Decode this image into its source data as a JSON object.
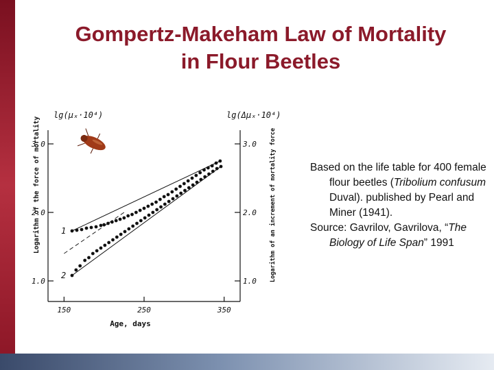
{
  "slide": {
    "title_line1": "Gompertz-Makeham Law of Mortality",
    "title_line2": "in Flour Beetles",
    "caption": {
      "p1_a": "Based on the life table for 400 female flour beetles (",
      "p1_species": "Tribolium confusum",
      "p1_b": " Duval). published by Pearl and Miner (1941).",
      "p2_a": "Source: Gavrilov, Gavrilova, “",
      "p2_book": "The Biology of Life Span",
      "p2_b": "” 1991"
    },
    "colors": {
      "title": "#8b1a2a",
      "accent_bar": "#9e2030",
      "bottom_bar": "#5a6e90"
    }
  },
  "chart_data": {
    "type": "scatter",
    "left_axis_label": "lg(μₓ·10⁴)",
    "right_axis_label": "lg(Δμₓ·10⁴)",
    "left_axis_title": "Logarithm of the force of mortality",
    "right_axis_title": "Logarithm of an increment of mortality force",
    "xlabel": "Age, days",
    "x_ticks": [
      "150",
      "250",
      "350"
    ],
    "y_ticks_left": [
      "1.0",
      "2.0",
      "3.0"
    ],
    "y_ticks_right": [
      "1.0",
      "2.0",
      "3.0"
    ],
    "xlim": [
      130,
      370
    ],
    "ylim": [
      0.7,
      3.2
    ],
    "series": [
      {
        "name": "1",
        "points": [
          [
            160,
            1.73
          ],
          [
            166,
            1.74
          ],
          [
            172,
            1.75
          ],
          [
            178,
            1.77
          ],
          [
            184,
            1.78
          ],
          [
            190,
            1.79
          ],
          [
            196,
            1.81
          ],
          [
            200,
            1.82
          ],
          [
            205,
            1.84
          ],
          [
            210,
            1.86
          ],
          [
            215,
            1.88
          ],
          [
            220,
            1.9
          ],
          [
            225,
            1.92
          ],
          [
            230,
            1.95
          ],
          [
            235,
            1.97
          ],
          [
            240,
            2.0
          ],
          [
            245,
            2.03
          ],
          [
            250,
            2.06
          ],
          [
            255,
            2.09
          ],
          [
            260,
            2.12
          ],
          [
            265,
            2.15
          ],
          [
            270,
            2.19
          ],
          [
            275,
            2.23
          ],
          [
            280,
            2.26
          ],
          [
            285,
            2.3
          ],
          [
            290,
            2.34
          ],
          [
            295,
            2.38
          ],
          [
            300,
            2.42
          ],
          [
            305,
            2.46
          ],
          [
            310,
            2.5
          ],
          [
            315,
            2.54
          ],
          [
            320,
            2.58
          ],
          [
            325,
            2.62
          ],
          [
            330,
            2.65
          ],
          [
            335,
            2.68
          ],
          [
            340,
            2.72
          ],
          [
            345,
            2.75
          ]
        ]
      },
      {
        "name": "2",
        "points": [
          [
            160,
            1.08
          ],
          [
            165,
            1.16
          ],
          [
            170,
            1.22
          ],
          [
            176,
            1.3
          ],
          [
            181,
            1.34
          ],
          [
            186,
            1.4
          ],
          [
            191,
            1.44
          ],
          [
            196,
            1.48
          ],
          [
            201,
            1.52
          ],
          [
            206,
            1.56
          ],
          [
            211,
            1.6
          ],
          [
            216,
            1.64
          ],
          [
            221,
            1.68
          ],
          [
            226,
            1.72
          ],
          [
            231,
            1.76
          ],
          [
            236,
            1.8
          ],
          [
            241,
            1.84
          ],
          [
            246,
            1.88
          ],
          [
            251,
            1.92
          ],
          [
            256,
            1.96
          ],
          [
            261,
            2.0
          ],
          [
            266,
            2.04
          ],
          [
            271,
            2.08
          ],
          [
            276,
            2.12
          ],
          [
            281,
            2.16
          ],
          [
            286,
            2.2
          ],
          [
            291,
            2.24
          ],
          [
            296,
            2.28
          ],
          [
            301,
            2.32
          ],
          [
            306,
            2.36
          ],
          [
            311,
            2.4
          ],
          [
            316,
            2.44
          ],
          [
            321,
            2.48
          ],
          [
            326,
            2.52
          ],
          [
            331,
            2.56
          ],
          [
            336,
            2.6
          ],
          [
            341,
            2.64
          ],
          [
            346,
            2.67
          ]
        ]
      }
    ],
    "dashed_line": [
      [
        150,
        1.4
      ],
      [
        225,
        2.0
      ]
    ]
  }
}
